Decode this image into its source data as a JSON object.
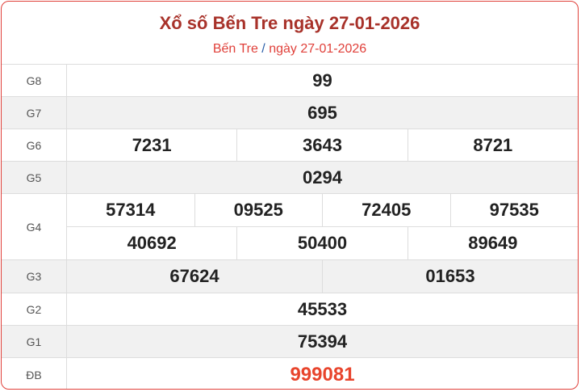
{
  "header": {
    "title": "Xổ số Bến Tre ngày 27-01-2026",
    "breadcrumb_province": "Bến Tre",
    "breadcrumb_sep": "/",
    "breadcrumb_date": "ngày 27-01-2026"
  },
  "colors": {
    "title": "#a8322a",
    "accent": "#e0403a",
    "special": "#e8442c"
  },
  "prizes": {
    "g8": {
      "label": "G8",
      "values": [
        "99"
      ]
    },
    "g7": {
      "label": "G7",
      "values": [
        "695"
      ]
    },
    "g6": {
      "label": "G6",
      "values": [
        "7231",
        "3643",
        "8721"
      ]
    },
    "g5": {
      "label": "G5",
      "values": [
        "0294"
      ]
    },
    "g4": {
      "label": "G4",
      "values": [
        "57314",
        "09525",
        "72405",
        "97535",
        "40692",
        "50400",
        "89649"
      ]
    },
    "g3": {
      "label": "G3",
      "values": [
        "67624",
        "01653"
      ]
    },
    "g2": {
      "label": "G2",
      "values": [
        "45533"
      ]
    },
    "g1": {
      "label": "G1",
      "values": [
        "75394"
      ]
    },
    "db": {
      "label": "ĐB",
      "values": [
        "999081"
      ]
    }
  }
}
